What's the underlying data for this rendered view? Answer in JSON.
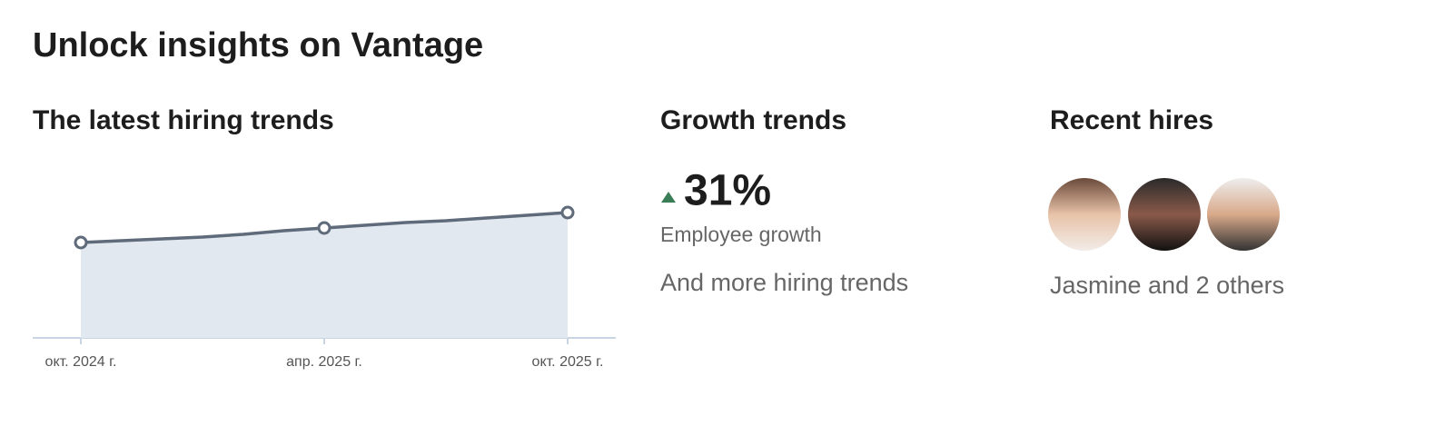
{
  "header": {
    "title": "Unlock insights on Vantage"
  },
  "hiring": {
    "title": "The latest hiring trends",
    "chart_data": {
      "type": "area",
      "categories": [
        "окт. 2024 г.",
        null,
        null,
        null,
        null,
        null,
        "апр. 2025 г.",
        null,
        null,
        null,
        null,
        null,
        "окт. 2025 г."
      ],
      "values": [
        105,
        107,
        109,
        111,
        114,
        118,
        121,
        124,
        127,
        129,
        132,
        135,
        138
      ],
      "ylim": [
        0,
        150
      ],
      "color": "#5f6b7a",
      "fill": "#e1e8f0"
    }
  },
  "growth": {
    "title": "Growth trends",
    "value": "31%",
    "label": "Employee growth",
    "more": "And more hiring trends"
  },
  "hires": {
    "title": "Recent hires",
    "summary": "Jasmine and 2 others"
  }
}
